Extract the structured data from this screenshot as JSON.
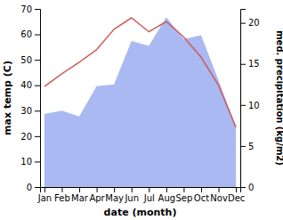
{
  "chart_data": {
    "type": "line",
    "xlabel": "date (month)",
    "ylabel": "max temp (C)",
    "y2label": "med. precipitation (kg/m2)",
    "categories": [
      "Jan",
      "Feb",
      "Mar",
      "Apr",
      "May",
      "Jun",
      "Jul",
      "Aug",
      "Sep",
      "Oct",
      "Nov",
      "Dec"
    ],
    "series": [
      {
        "type": "line",
        "color": "#cd5c5c",
        "values": [
          39.5,
          44.5,
          49,
          54,
          62,
          66.5,
          61,
          65,
          59,
          51,
          40,
          23.5
        ]
      },
      {
        "type": "area",
        "axis": "y2",
        "color": "#aab9f2",
        "values": [
          8.9,
          9.3,
          8.6,
          12.3,
          12.5,
          17.8,
          17.2,
          20.7,
          18,
          18.5,
          13,
          7.3
        ]
      }
    ],
    "ylim": [
      0,
      70
    ],
    "yticks": [
      0,
      10,
      20,
      30,
      40,
      50,
      60,
      70
    ],
    "y2lim": [
      0,
      21.7
    ],
    "y2ticks": [
      0,
      5,
      10,
      15,
      20
    ]
  }
}
